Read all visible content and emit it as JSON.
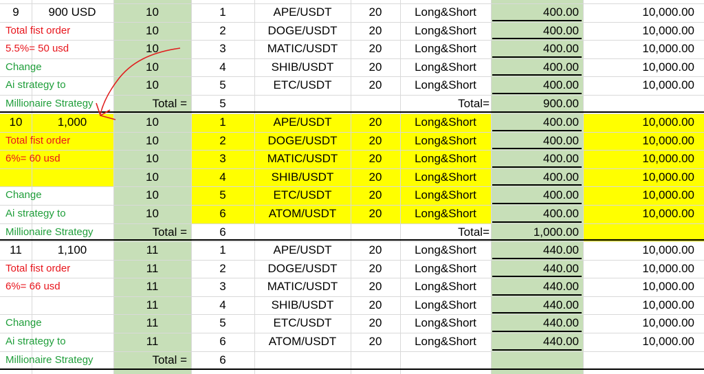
{
  "colors": {
    "green_fill": "#c7dfb8",
    "yellow_fill": "#ffff00",
    "red_text": "#e8141b",
    "green_text": "#1f9e3a",
    "annotation": "#e02020"
  },
  "top_cut_text": "",
  "blocks": [
    {
      "num": "9",
      "amount": "900 USD",
      "notes": [
        {
          "text": "Total fist order",
          "color": "red"
        },
        {
          "text": "5.5%= 50 usd",
          "color": "red"
        },
        {
          "text": "Change",
          "color": "green"
        },
        {
          "text": "Ai strategy to",
          "color": "green"
        },
        {
          "text": "Millionaire Strategy",
          "color": "green"
        }
      ],
      "rows": [
        {
          "qty": "10",
          "idx": "1",
          "pair": "APE/USDT",
          "lev": "20",
          "mode": "Long&Short",
          "margin": "400.00",
          "max": "10,000.00"
        },
        {
          "qty": "10",
          "idx": "2",
          "pair": "DOGE/USDT",
          "lev": "20",
          "mode": "Long&Short",
          "margin": "400.00",
          "max": "10,000.00"
        },
        {
          "qty": "10",
          "idx": "3",
          "pair": "MATIC/USDT",
          "lev": "20",
          "mode": "Long&Short",
          "margin": "400.00",
          "max": "10,000.00"
        },
        {
          "qty": "10",
          "idx": "4",
          "pair": "SHIB/USDT",
          "lev": "20",
          "mode": "Long&Short",
          "margin": "400.00",
          "max": "10,000.00"
        },
        {
          "qty": "10",
          "idx": "5",
          "pair": "ETC/USDT",
          "lev": "20",
          "mode": "Long&Short",
          "margin": "400.00",
          "max": "10,000.00"
        }
      ],
      "total_label": "Total =",
      "total_count": "5",
      "total_label2": "Total=",
      "total_amount": "900.00"
    },
    {
      "num": "10",
      "amount": "1,000",
      "notes": [
        {
          "text": "Total fist order",
          "color": "red"
        },
        {
          "text": "6%= 60 usd",
          "color": "red"
        },
        {
          "text": "Change",
          "color": "green"
        },
        {
          "text": "Ai strategy to",
          "color": "green"
        },
        {
          "text": "Millionaire Strategy",
          "color": "green"
        }
      ],
      "rows": [
        {
          "qty": "10",
          "idx": "1",
          "pair": "APE/USDT",
          "lev": "20",
          "mode": "Long&Short",
          "margin": "400.00",
          "max": "10,000.00"
        },
        {
          "qty": "10",
          "idx": "2",
          "pair": "DOGE/USDT",
          "lev": "20",
          "mode": "Long&Short",
          "margin": "400.00",
          "max": "10,000.00"
        },
        {
          "qty": "10",
          "idx": "3",
          "pair": "MATIC/USDT",
          "lev": "20",
          "mode": "Long&Short",
          "margin": "400.00",
          "max": "10,000.00"
        },
        {
          "qty": "10",
          "idx": "4",
          "pair": "SHIB/USDT",
          "lev": "20",
          "mode": "Long&Short",
          "margin": "400.00",
          "max": "10,000.00"
        },
        {
          "qty": "10",
          "idx": "5",
          "pair": "ETC/USDT",
          "lev": "20",
          "mode": "Long&Short",
          "margin": "400.00",
          "max": "10,000.00"
        },
        {
          "qty": "10",
          "idx": "6",
          "pair": "ATOM/USDT",
          "lev": "20",
          "mode": "Long&Short",
          "margin": "400.00",
          "max": "10,000.00"
        }
      ],
      "total_label": "Total =",
      "total_count": "6",
      "total_label2": "Total=",
      "total_amount": "1,000.00"
    },
    {
      "num": "11",
      "amount": "1,100",
      "notes": [
        {
          "text": "Total fist order",
          "color": "red"
        },
        {
          "text": "6%= 66 usd",
          "color": "red"
        },
        {
          "text": "Change",
          "color": "green"
        },
        {
          "text": "Ai strategy to",
          "color": "green"
        },
        {
          "text": "Millionaire Strategy",
          "color": "green"
        }
      ],
      "rows": [
        {
          "qty": "11",
          "idx": "1",
          "pair": "APE/USDT",
          "lev": "20",
          "mode": "Long&Short",
          "margin": "440.00",
          "max": "10,000.00"
        },
        {
          "qty": "11",
          "idx": "2",
          "pair": "DOGE/USDT",
          "lev": "20",
          "mode": "Long&Short",
          "margin": "440.00",
          "max": "10,000.00"
        },
        {
          "qty": "11",
          "idx": "3",
          "pair": "MATIC/USDT",
          "lev": "20",
          "mode": "Long&Short",
          "margin": "440.00",
          "max": "10,000.00"
        },
        {
          "qty": "11",
          "idx": "4",
          "pair": "SHIB/USDT",
          "lev": "20",
          "mode": "Long&Short",
          "margin": "440.00",
          "max": "10,000.00"
        },
        {
          "qty": "11",
          "idx": "5",
          "pair": "ETC/USDT",
          "lev": "20",
          "mode": "Long&Short",
          "margin": "440.00",
          "max": "10,000.00"
        },
        {
          "qty": "11",
          "idx": "6",
          "pair": "ATOM/USDT",
          "lev": "20",
          "mode": "Long&Short",
          "margin": "440.00",
          "max": "10,000.00"
        }
      ],
      "total_label": "Total =",
      "total_count": "6",
      "total_label2": "",
      "total_amount": ""
    }
  ]
}
